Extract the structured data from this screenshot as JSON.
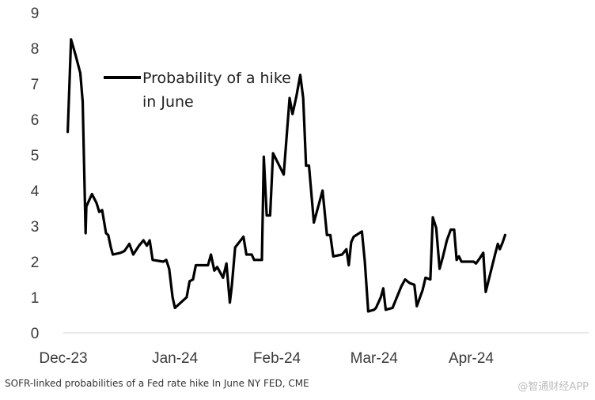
{
  "chart_data": {
    "type": "line",
    "title": "",
    "xlabel": "",
    "ylabel": "",
    "ylim": [
      0,
      9
    ],
    "yticks": [
      "0",
      "1",
      "2",
      "3",
      "4",
      "5",
      "6",
      "7",
      "8",
      "9"
    ],
    "x_tick_labels": [
      {
        "label": "Dec-23",
        "t": 0
      },
      {
        "label": "Jan-24",
        "t": 23
      },
      {
        "label": "Feb-24",
        "t": 44
      },
      {
        "label": "Mar-24",
        "t": 64
      },
      {
        "label": "Apr-24",
        "t": 84
      }
    ],
    "x_range": [
      0,
      108.2
    ],
    "legend": {
      "labels": [
        "Probability of a hike",
        "in June"
      ],
      "position": "top-left"
    },
    "series": [
      {
        "name": "Probability of a hike in June",
        "color": "#000000",
        "points": [
          [
            0.92,
            5.65
          ],
          [
            1.6,
            8.25
          ],
          [
            2.55,
            7.8
          ],
          [
            3.5,
            7.3
          ],
          [
            4.0,
            6.5
          ],
          [
            4.6,
            2.8
          ],
          [
            4.75,
            3.55
          ],
          [
            5.9,
            3.9
          ],
          [
            6.85,
            3.65
          ],
          [
            7.4,
            3.4
          ],
          [
            8.0,
            3.45
          ],
          [
            8.8,
            2.8
          ],
          [
            9.25,
            2.75
          ],
          [
            9.8,
            2.4
          ],
          [
            10.2,
            2.2
          ],
          [
            11.8,
            2.25
          ],
          [
            12.6,
            2.3
          ],
          [
            13.6,
            2.5
          ],
          [
            14.4,
            2.2
          ],
          [
            15.6,
            2.45
          ],
          [
            16.5,
            2.6
          ],
          [
            17.2,
            2.45
          ],
          [
            17.8,
            2.6
          ],
          [
            18.4,
            2.05
          ],
          [
            20.6,
            2.0
          ],
          [
            21.2,
            2.05
          ],
          [
            21.8,
            1.8
          ],
          [
            22.5,
            1.0
          ],
          [
            23.0,
            0.7
          ],
          [
            25.4,
            1.0
          ],
          [
            26.0,
            1.45
          ],
          [
            26.7,
            1.5
          ],
          [
            27.3,
            1.9
          ],
          [
            29.8,
            1.9
          ],
          [
            30.4,
            2.2
          ],
          [
            31.1,
            1.75
          ],
          [
            31.7,
            1.85
          ],
          [
            32.9,
            1.55
          ],
          [
            33.6,
            1.95
          ],
          [
            34.3,
            0.85
          ],
          [
            34.7,
            1.3
          ],
          [
            35.4,
            2.4
          ],
          [
            37.1,
            2.7
          ],
          [
            37.7,
            2.2
          ],
          [
            38.8,
            2.2
          ],
          [
            39.3,
            2.05
          ],
          [
            40.9,
            2.05
          ],
          [
            41.3,
            4.95
          ],
          [
            41.9,
            3.3
          ],
          [
            42.6,
            3.3
          ],
          [
            43.2,
            5.05
          ],
          [
            45.4,
            4.45
          ],
          [
            46.6,
            6.6
          ],
          [
            47.2,
            6.15
          ],
          [
            48.0,
            6.65
          ],
          [
            48.8,
            7.25
          ],
          [
            49.4,
            6.6
          ],
          [
            50.0,
            4.7
          ],
          [
            50.6,
            4.7
          ],
          [
            51.6,
            3.1
          ],
          [
            53.4,
            4.0
          ],
          [
            54.3,
            2.75
          ],
          [
            55.0,
            2.75
          ],
          [
            55.6,
            2.15
          ],
          [
            57.4,
            2.2
          ],
          [
            58.3,
            2.35
          ],
          [
            58.8,
            1.9
          ],
          [
            59.3,
            2.55
          ],
          [
            59.8,
            2.7
          ],
          [
            61.5,
            2.85
          ],
          [
            62.1,
            2.0
          ],
          [
            62.8,
            0.6
          ],
          [
            64.0,
            0.65
          ],
          [
            64.4,
            0.7
          ],
          [
            65.4,
            1.0
          ],
          [
            65.9,
            1.25
          ],
          [
            66.4,
            0.65
          ],
          [
            67.8,
            0.7
          ],
          [
            69.6,
            1.3
          ],
          [
            70.4,
            1.5
          ],
          [
            71.3,
            1.4
          ],
          [
            72.3,
            1.35
          ],
          [
            72.8,
            0.75
          ],
          [
            74.0,
            1.2
          ],
          [
            74.6,
            1.55
          ],
          [
            75.6,
            1.5
          ],
          [
            76.1,
            3.25
          ],
          [
            76.8,
            2.95
          ],
          [
            77.5,
            1.8
          ],
          [
            78.2,
            2.15
          ],
          [
            79.0,
            2.6
          ],
          [
            79.8,
            2.9
          ],
          [
            80.5,
            2.9
          ],
          [
            81.0,
            2.05
          ],
          [
            81.5,
            2.15
          ],
          [
            82.0,
            2.0
          ],
          [
            84.5,
            2.0
          ],
          [
            85.0,
            1.95
          ],
          [
            85.8,
            2.1
          ],
          [
            86.5,
            2.25
          ],
          [
            87.0,
            1.15
          ],
          [
            89.0,
            2.25
          ],
          [
            89.5,
            2.5
          ],
          [
            89.9,
            2.35
          ],
          [
            90.5,
            2.55
          ],
          [
            91.0,
            2.75
          ]
        ]
      }
    ]
  },
  "caption": {
    "text": "SOFR-linked probabilities of a Fed rate hike In June",
    "source": "NY FED, CME"
  },
  "watermark": "@智通财经APP"
}
